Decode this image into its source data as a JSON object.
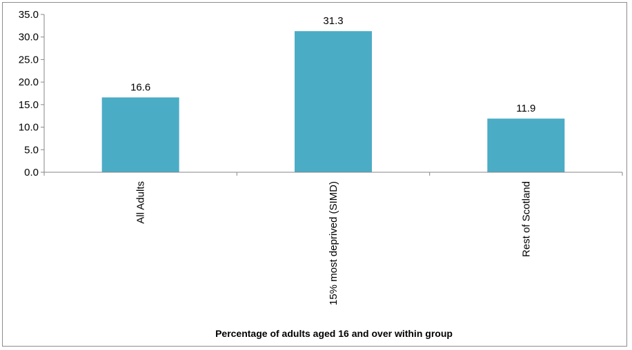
{
  "chart_data": {
    "type": "bar",
    "title": "",
    "xlabel": "Percentage of adults aged 16 and over within group",
    "ylabel": "",
    "categories": [
      "All Adults",
      "15% most deprived (SIMD)",
      "Rest of Scotland"
    ],
    "values": [
      16.6,
      31.3,
      11.9
    ],
    "data_labels": [
      "16.6",
      "31.3",
      "11.9"
    ],
    "ylim": [
      0,
      35
    ],
    "yticks": [
      0,
      5,
      10,
      15,
      20,
      25,
      30,
      35
    ],
    "ytick_labels": [
      "0.0",
      "5.0",
      "10.0",
      "15.0",
      "20.0",
      "25.0",
      "30.0",
      "35.0"
    ],
    "bar_color": "#4BACC6",
    "axis_color": "#868686",
    "grid": false,
    "legend": "none"
  }
}
